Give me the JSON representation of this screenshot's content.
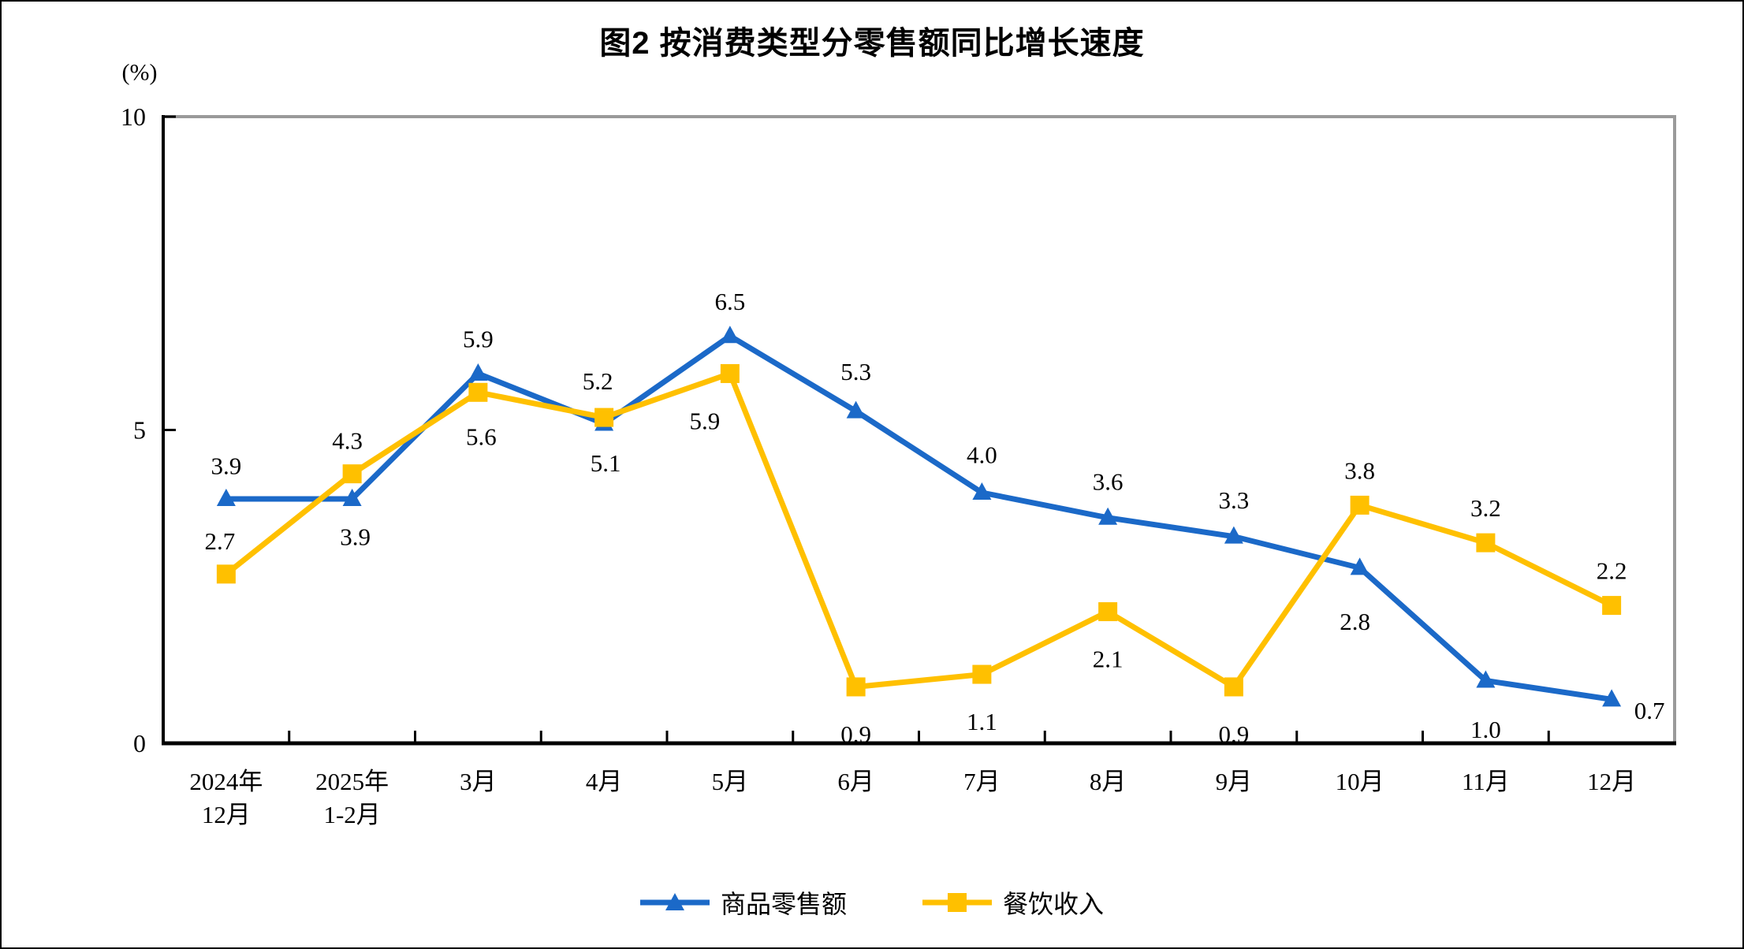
{
  "page": {
    "background": "#ffffff",
    "frame_color": "#000000"
  },
  "chart_data": {
    "type": "line",
    "title": "图2  按消费类型分零售额同比增长速度",
    "unit_label": "(%)",
    "categories": [
      [
        "2024年",
        "12月"
      ],
      [
        "2025年",
        "1-2月"
      ],
      [
        "3月"
      ],
      [
        "4月"
      ],
      [
        "5月"
      ],
      [
        "6月"
      ],
      [
        "7月"
      ],
      [
        "8月"
      ],
      [
        "9月"
      ],
      [
        "10月"
      ],
      [
        "11月"
      ],
      [
        "12月"
      ]
    ],
    "y_axis": {
      "min": 0,
      "max": 10,
      "ticks": [
        0,
        5,
        10
      ]
    },
    "grid": "off",
    "legend_position": "bottom",
    "axis_color": "#000000",
    "border_color": "#9a9a9a",
    "series": [
      {
        "name": "商品零售额",
        "color": "#1b69c8",
        "marker": "triangle",
        "values": [
          3.9,
          3.9,
          5.9,
          5.1,
          6.5,
          5.3,
          4.0,
          3.6,
          3.3,
          2.8,
          1.0,
          0.7
        ],
        "label_offsets": [
          [
            0,
            -42
          ],
          [
            4,
            48
          ],
          [
            0,
            -44
          ],
          [
            2,
            50
          ],
          [
            0,
            -44
          ],
          [
            0,
            -50
          ],
          [
            0,
            -48
          ],
          [
            0,
            -46
          ],
          [
            0,
            -46
          ],
          [
            -6,
            68
          ],
          [
            0,
            62
          ],
          [
            48,
            14
          ]
        ]
      },
      {
        "name": "餐饮收入",
        "color": "#ffc000",
        "marker": "square",
        "values": [
          2.7,
          4.3,
          5.6,
          5.2,
          5.9,
          0.9,
          1.1,
          2.1,
          0.9,
          3.8,
          3.2,
          2.2
        ],
        "label_offsets": [
          [
            -8,
            -42
          ],
          [
            -6,
            -42
          ],
          [
            4,
            56
          ],
          [
            -8,
            -46
          ],
          [
            -32,
            60
          ],
          [
            0,
            60
          ],
          [
            0,
            60
          ],
          [
            0,
            60
          ],
          [
            0,
            60
          ],
          [
            0,
            -44
          ],
          [
            0,
            -44
          ],
          [
            0,
            -44
          ]
        ]
      }
    ]
  }
}
